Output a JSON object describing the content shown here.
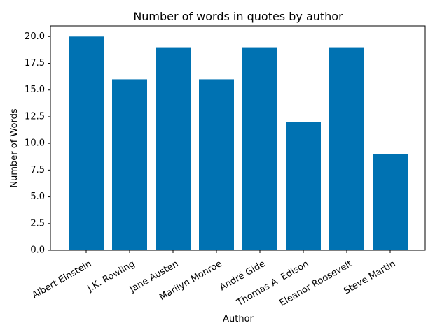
{
  "chart_data": {
    "type": "bar",
    "title": "Number of words in quotes by author",
    "xlabel": "Author",
    "ylabel": "Number of Words",
    "categories": [
      "Albert Einstein",
      "J.K. Rowling",
      "Jane Austen",
      "Marilyn Monroe",
      "André Gide",
      "Thomas A. Edison",
      "Eleanor Roosevelt",
      "Steve Martin"
    ],
    "values": [
      20,
      16,
      19,
      16,
      19,
      12,
      19,
      9
    ],
    "ylim": [
      0,
      21
    ],
    "yticks": [
      0.0,
      2.5,
      5.0,
      7.5,
      10.0,
      12.5,
      15.0,
      17.5,
      20.0
    ],
    "ytick_labels": [
      "0.0",
      "2.5",
      "5.0",
      "7.5",
      "10.0",
      "12.5",
      "15.0",
      "17.5",
      "20.0"
    ],
    "grid": false,
    "bar_color": "#0072b2"
  }
}
